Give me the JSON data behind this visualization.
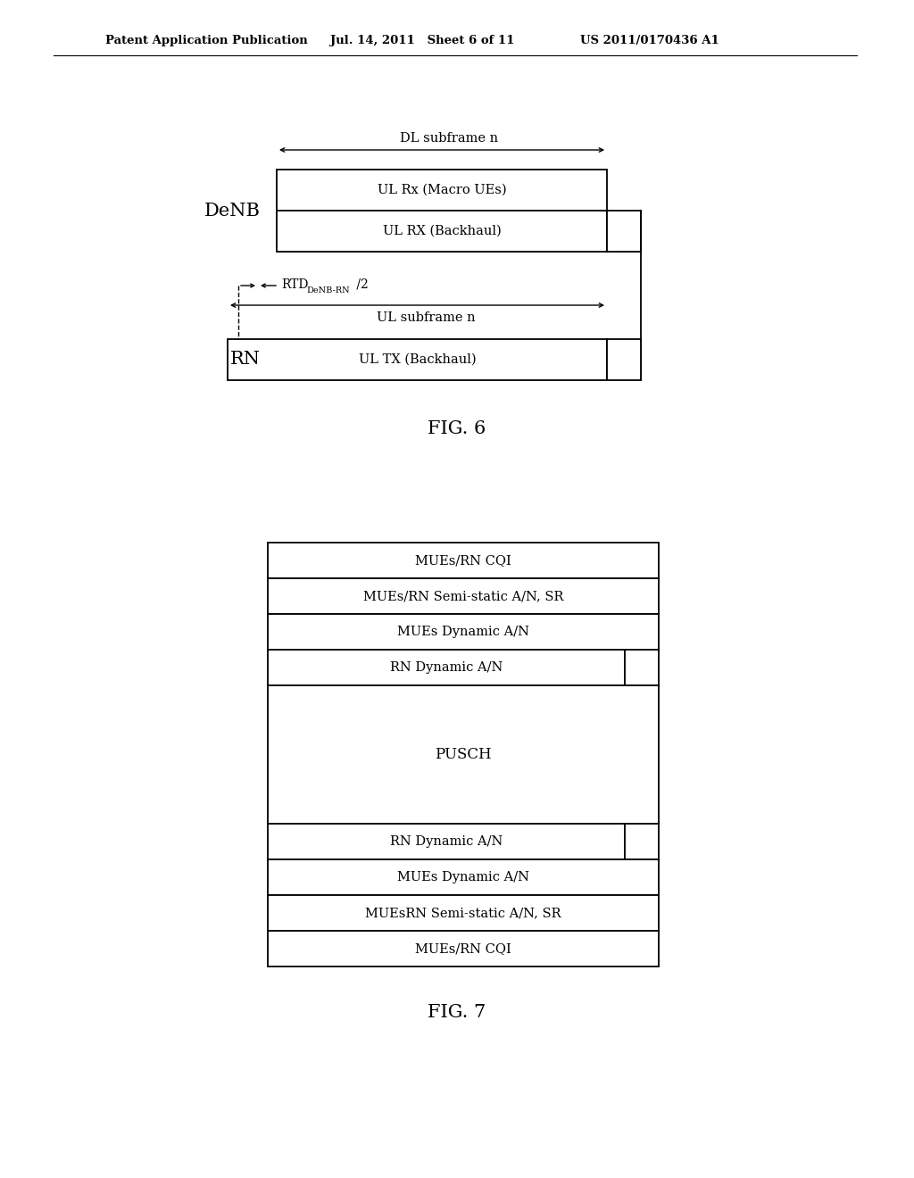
{
  "header_left": "Patent Application Publication",
  "header_mid": "Jul. 14, 2011   Sheet 6 of 11",
  "header_right": "US 2011/0170436 A1",
  "fig6_caption": "FIG. 6",
  "fig7_caption": "FIG. 7",
  "fig6": {
    "denb_label": "DeNB",
    "rn_label": "RN",
    "dl_subframe_label": "DL subframe n",
    "ul_rx_macro_label": "UL Rx (Macro UEs)",
    "ul_rx_backhaul_label": "UL RX (Backhaul)",
    "ul_subframe_label": "UL subframe n",
    "ul_tx_backhaul_label": "UL TX (Backhaul)"
  },
  "fig7": {
    "rows_top": [
      "MUEs/RN CQI",
      "MUEs/RN Semi-static A/N, SR",
      "MUEs Dynamic A/N",
      "RN Dynamic A/N"
    ],
    "middle": "PUSCH",
    "rows_bottom": [
      "RN Dynamic A/N",
      "MUEs Dynamic A/N",
      "MUEsRN Semi-static A/N, SR",
      "MUEs/RN CQI"
    ]
  },
  "bg_color": "#ffffff",
  "line_color": "#000000",
  "text_color": "#000000"
}
